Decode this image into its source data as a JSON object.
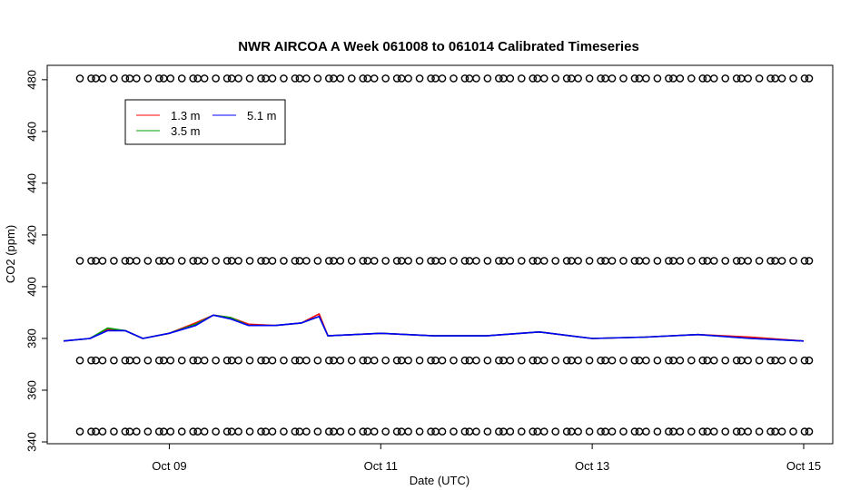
{
  "chart_data": {
    "type": "line",
    "title": "NWR AIRCOA A  Week 061008 to 061014  Calibrated Timeseries",
    "xlabel": "Date (UTC)",
    "ylabel": "CO2 (ppm)",
    "x_ticks": [
      "Oct 09",
      "Oct 11",
      "Oct 13",
      "Oct 15"
    ],
    "y_ticks": [
      340,
      360,
      380,
      400,
      420,
      440,
      460,
      480
    ],
    "xlim": [
      "2006-10-08 00:00",
      "2006-10-15 00:00"
    ],
    "ylim": [
      340,
      481
    ],
    "legend_position": "top-left",
    "series": [
      {
        "name": "1.3 m",
        "color": "#ff0000",
        "x": [
          "2006-10-08 00:00",
          "2006-10-08 06:00",
          "2006-10-08 10:00",
          "2006-10-08 14:00",
          "2006-10-08 18:00",
          "2006-10-09 00:00",
          "2006-10-09 06:00",
          "2006-10-09 10:00",
          "2006-10-09 14:00",
          "2006-10-09 18:00",
          "2006-10-10 00:00",
          "2006-10-10 06:00",
          "2006-10-10 10:00",
          "2006-10-10 12:00",
          "2006-10-10 18:00",
          "2006-10-11 00:00",
          "2006-10-11 12:00",
          "2006-10-12 00:00",
          "2006-10-12 12:00",
          "2006-10-13 00:00",
          "2006-10-13 12:00",
          "2006-10-14 00:00",
          "2006-10-14 12:00",
          "2006-10-15 00:00"
        ],
        "values": [
          379,
          380,
          383.5,
          383,
          380,
          382,
          386,
          389,
          388,
          385.5,
          385,
          386,
          389.5,
          381,
          381.5,
          382,
          381,
          381,
          382.5,
          380,
          380.5,
          381.5,
          380.5,
          379
        ]
      },
      {
        "name": "3.5 m",
        "color": "#00a000",
        "x": [
          "2006-10-08 00:00",
          "2006-10-08 06:00",
          "2006-10-08 10:00",
          "2006-10-08 14:00",
          "2006-10-08 18:00",
          "2006-10-09 00:00",
          "2006-10-09 06:00",
          "2006-10-09 10:00",
          "2006-10-09 14:00",
          "2006-10-09 18:00",
          "2006-10-10 00:00",
          "2006-10-10 06:00",
          "2006-10-10 10:00",
          "2006-10-10 12:00",
          "2006-10-10 18:00",
          "2006-10-11 00:00",
          "2006-10-11 12:00",
          "2006-10-12 00:00",
          "2006-10-12 12:00",
          "2006-10-13 00:00",
          "2006-10-13 12:00",
          "2006-10-14 00:00",
          "2006-10-14 12:00",
          "2006-10-15 00:00"
        ],
        "values": [
          379,
          380,
          384,
          383,
          380,
          382,
          385.5,
          389,
          388,
          385,
          385,
          386,
          388.5,
          381,
          381.5,
          382,
          381,
          381,
          382.5,
          380,
          380.5,
          381.5,
          380,
          379
        ]
      },
      {
        "name": "5.1 m",
        "color": "#0000ff",
        "x": [
          "2006-10-08 00:00",
          "2006-10-08 06:00",
          "2006-10-08 10:00",
          "2006-10-08 14:00",
          "2006-10-08 18:00",
          "2006-10-09 00:00",
          "2006-10-09 06:00",
          "2006-10-09 10:00",
          "2006-10-09 14:00",
          "2006-10-09 18:00",
          "2006-10-10 00:00",
          "2006-10-10 06:00",
          "2006-10-10 10:00",
          "2006-10-10 12:00",
          "2006-10-10 18:00",
          "2006-10-11 00:00",
          "2006-10-11 12:00",
          "2006-10-12 00:00",
          "2006-10-12 12:00",
          "2006-10-13 00:00",
          "2006-10-13 12:00",
          "2006-10-14 00:00",
          "2006-10-14 12:00",
          "2006-10-15 00:00"
        ],
        "values": [
          379,
          380,
          383,
          383,
          380,
          382,
          385,
          389,
          387.5,
          385,
          385,
          386,
          388.5,
          381,
          381.5,
          382,
          381,
          381,
          382.5,
          380,
          380.5,
          381.5,
          380,
          379
        ]
      }
    ],
    "marker_rows": [
      {
        "y": 480.5,
        "count": 65
      },
      {
        "y": 410,
        "count": 65
      },
      {
        "y": 371.5,
        "count": 65
      },
      {
        "y": 344,
        "count": 65
      }
    ]
  }
}
